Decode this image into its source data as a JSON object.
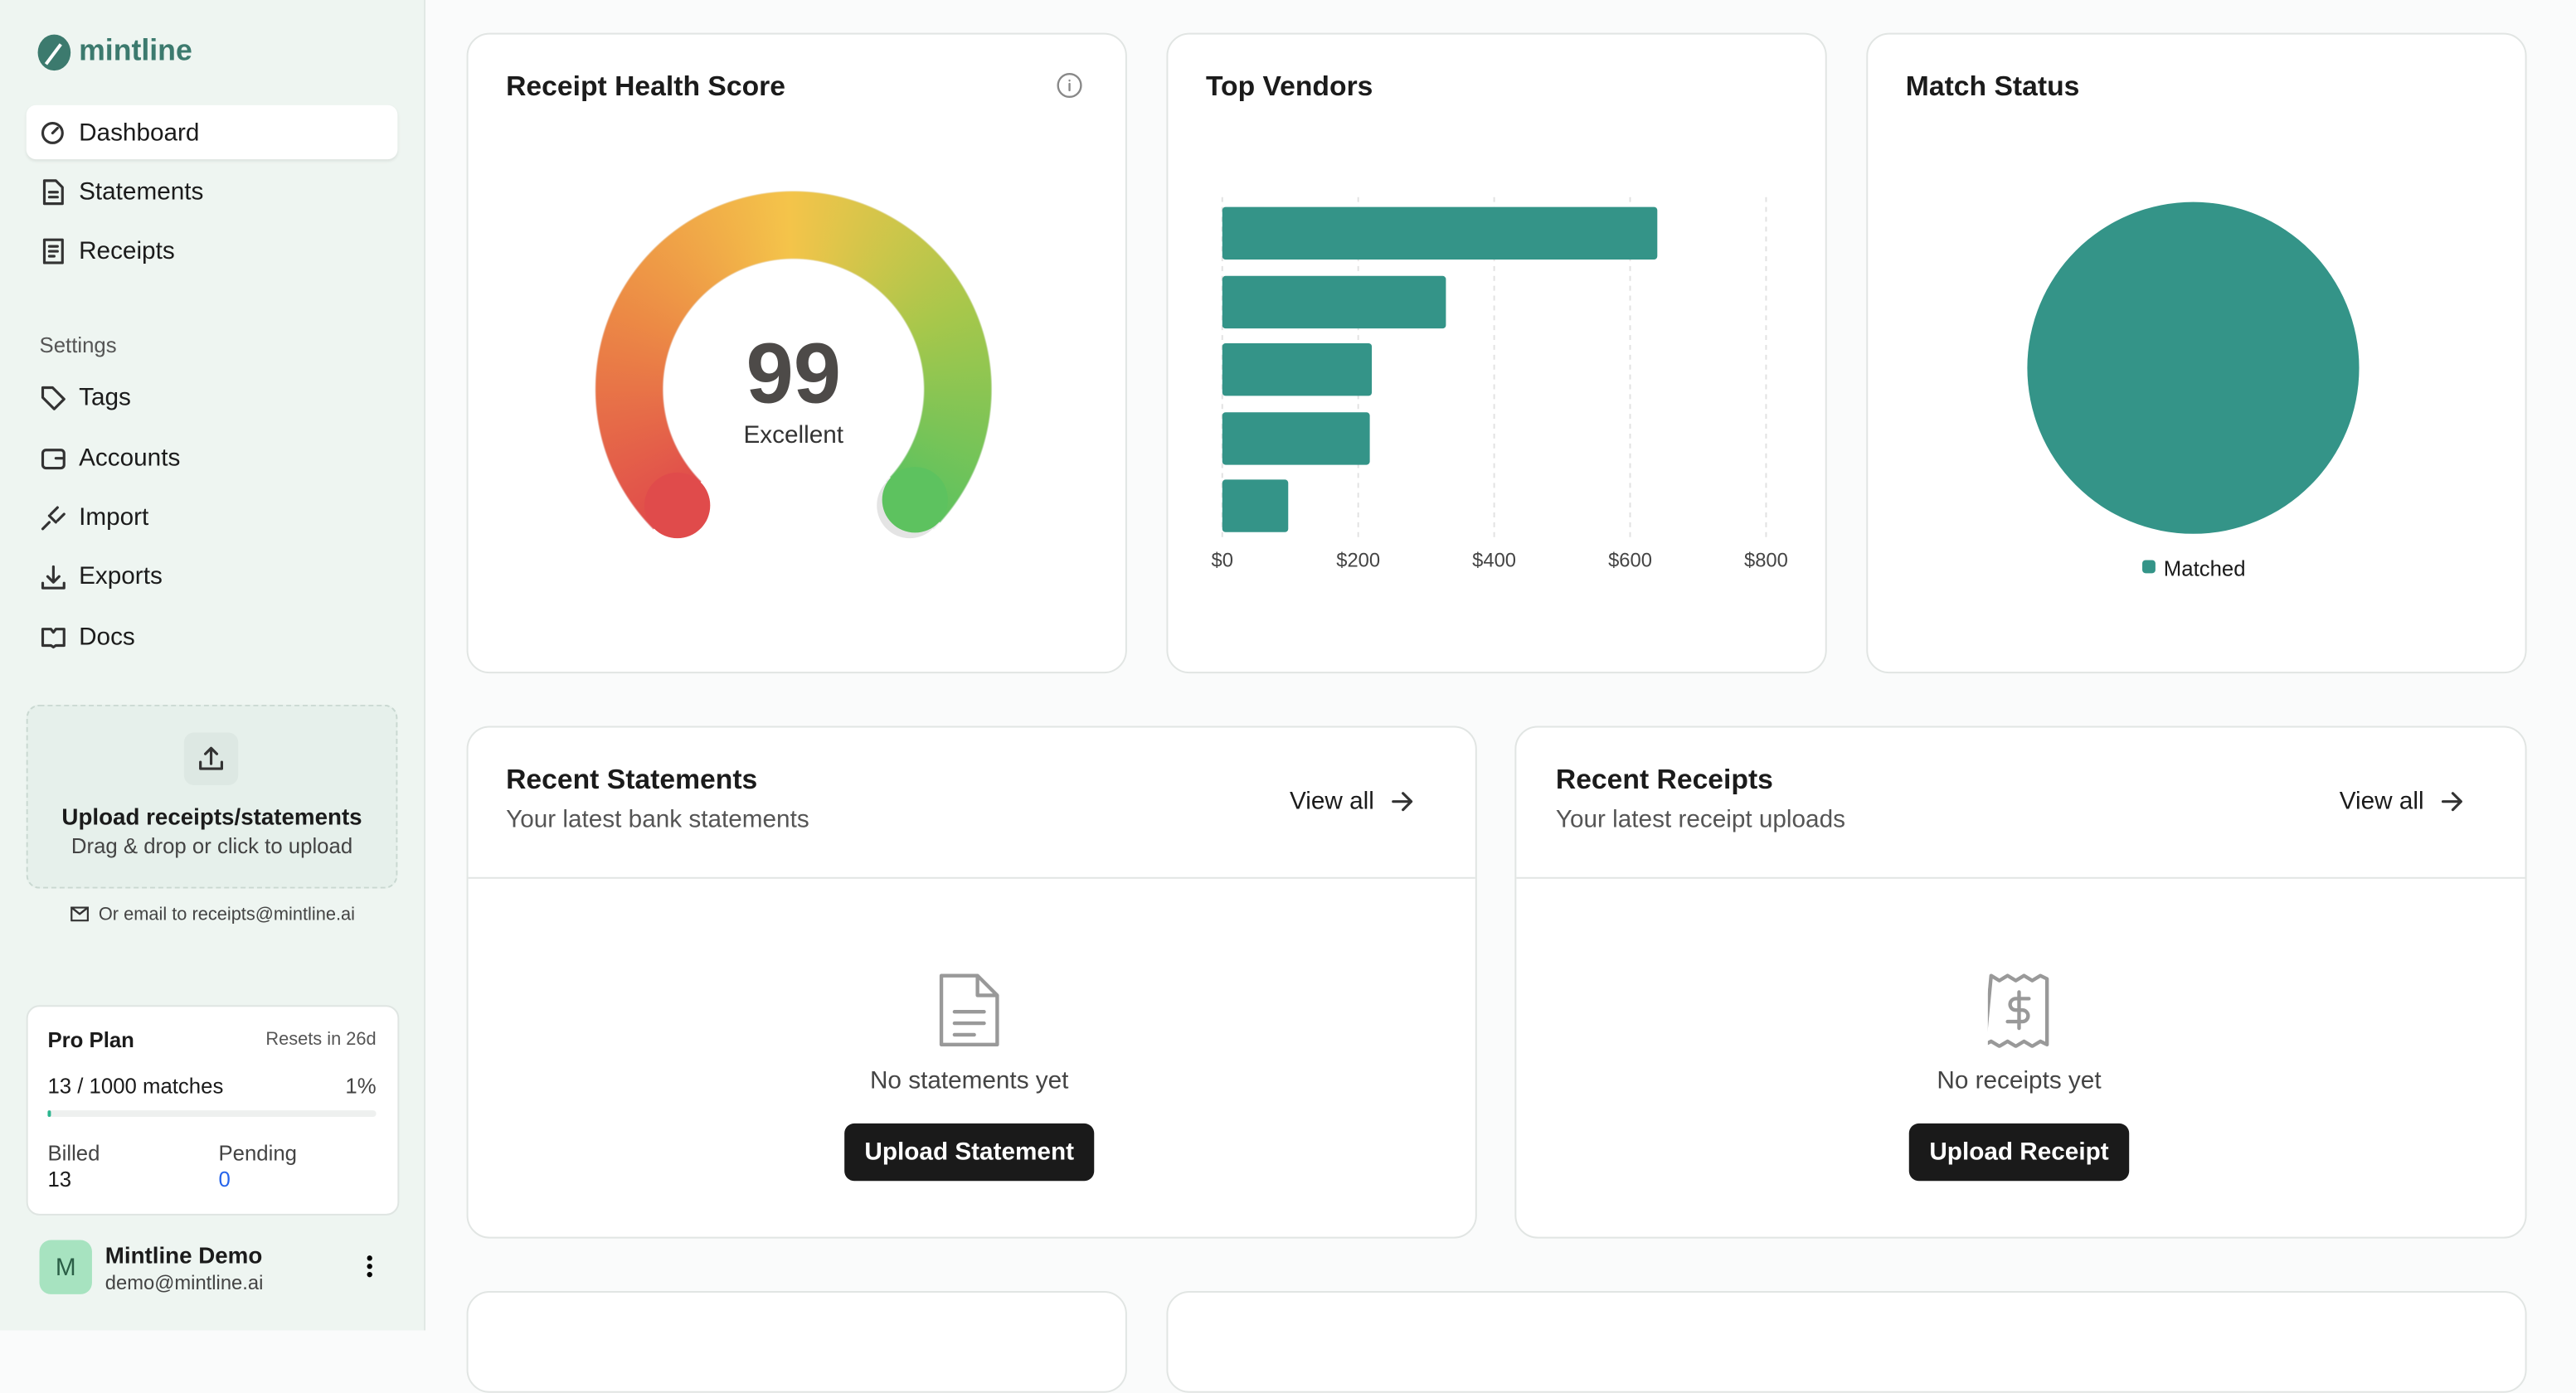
{
  "sidebar": {
    "brand": "mintline",
    "nav": [
      "Dashboard",
      "Statements",
      "Receipts"
    ],
    "settings_heading": "Settings",
    "settings_nav": [
      "Tags",
      "Accounts",
      "Import",
      "Exports",
      "Docs"
    ],
    "upload": {
      "title": "Upload receipts/statements",
      "subtitle": "Drag & drop or click to upload",
      "email_hint": "Or email to receipts@mintline.ai"
    },
    "plan": {
      "name": "Pro Plan",
      "resets": "Resets in 26d",
      "matches": "13 / 1000 matches",
      "usage": {
        "value": 1,
        "label": "1%"
      },
      "billed_label": "Billed",
      "billed": "13",
      "pending_label": "Pending",
      "pending": "0"
    },
    "user": {
      "initial": "M",
      "name": "Mintline Demo",
      "email": "demo@mintline.ai"
    }
  },
  "chart_data": [
    {
      "type": "gauge",
      "title": "Receipt Health Score",
      "value": 99,
      "rating": "Excellent",
      "ylim": [
        0,
        100
      ]
    },
    {
      "type": "bar",
      "orientation": "horizontal",
      "title": "Top Vendors",
      "categories": [
        null,
        null,
        null,
        null,
        null
      ],
      "values": [
        640,
        329,
        220,
        217,
        97
      ],
      "color": "#349488",
      "xlim": [
        0,
        800
      ],
      "xticks": [
        {
          "value": 0,
          "label": "$0"
        },
        {
          "value": 200,
          "label": "$200"
        },
        {
          "value": 400,
          "label": "$400"
        },
        {
          "value": 600,
          "label": "$600"
        },
        {
          "value": 800,
          "label": "$800"
        }
      ],
      "grid": true
    },
    {
      "type": "pie",
      "title": "Match Status",
      "categories": [
        "Matched"
      ],
      "values": [
        100
      ],
      "colors": [
        "#349488"
      ]
    }
  ],
  "recent_statements": {
    "title": "Recent Statements",
    "subtitle": "Your latest bank statements",
    "link": "View all",
    "empty": "No statements yet",
    "button": "Upload Statement"
  },
  "recent_receipts": {
    "title": "Recent Receipts",
    "subtitle": "Your latest receipt uploads",
    "link": "View all",
    "empty": "No receipts yet",
    "button": "Upload Receipt"
  }
}
